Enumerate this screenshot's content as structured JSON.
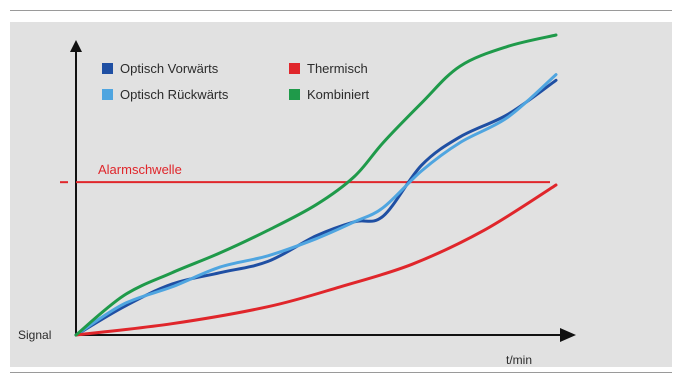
{
  "chart_data": {
    "type": "line",
    "title": "",
    "xlabel": "t/min",
    "ylabel": "Signal",
    "xlim": [
      0,
      100
    ],
    "ylim": [
      0,
      100
    ],
    "grid": false,
    "legend_position": "top-left",
    "series": [
      {
        "name": "Optisch Vorwärts",
        "color": "#1f4fa3",
        "x": [
          0,
          10,
          20,
          30,
          40,
          50,
          58,
          64,
          72,
          80,
          90,
          100
        ],
        "y": [
          0,
          10,
          18,
          22,
          26,
          35,
          40,
          42,
          60,
          70,
          78,
          90
        ]
      },
      {
        "name": "Optisch Rückwärts",
        "color": "#4fa5e0",
        "x": [
          0,
          10,
          20,
          30,
          40,
          50,
          58,
          64,
          72,
          80,
          90,
          100
        ],
        "y": [
          0,
          11,
          17,
          24,
          28,
          34,
          40,
          45,
          58,
          68,
          77,
          92
        ]
      },
      {
        "name": "Thermisch",
        "color": "#e0262b",
        "x": [
          0,
          20,
          40,
          55,
          70,
          85,
          100
        ],
        "y": [
          0,
          4,
          10,
          17,
          25,
          37,
          53
        ]
      },
      {
        "name": "Kombiniert",
        "color": "#1f9a4a",
        "x": [
          0,
          10,
          20,
          30,
          40,
          50,
          58,
          64,
          72,
          80,
          90,
          100
        ],
        "y": [
          0,
          14,
          22,
          29,
          37,
          46,
          56,
          68,
          82,
          95,
          102,
          106
        ]
      }
    ],
    "annotations": [
      {
        "label": "Alarmschwelle",
        "type": "hline",
        "y": 54,
        "color": "#e0262b"
      }
    ]
  }
}
